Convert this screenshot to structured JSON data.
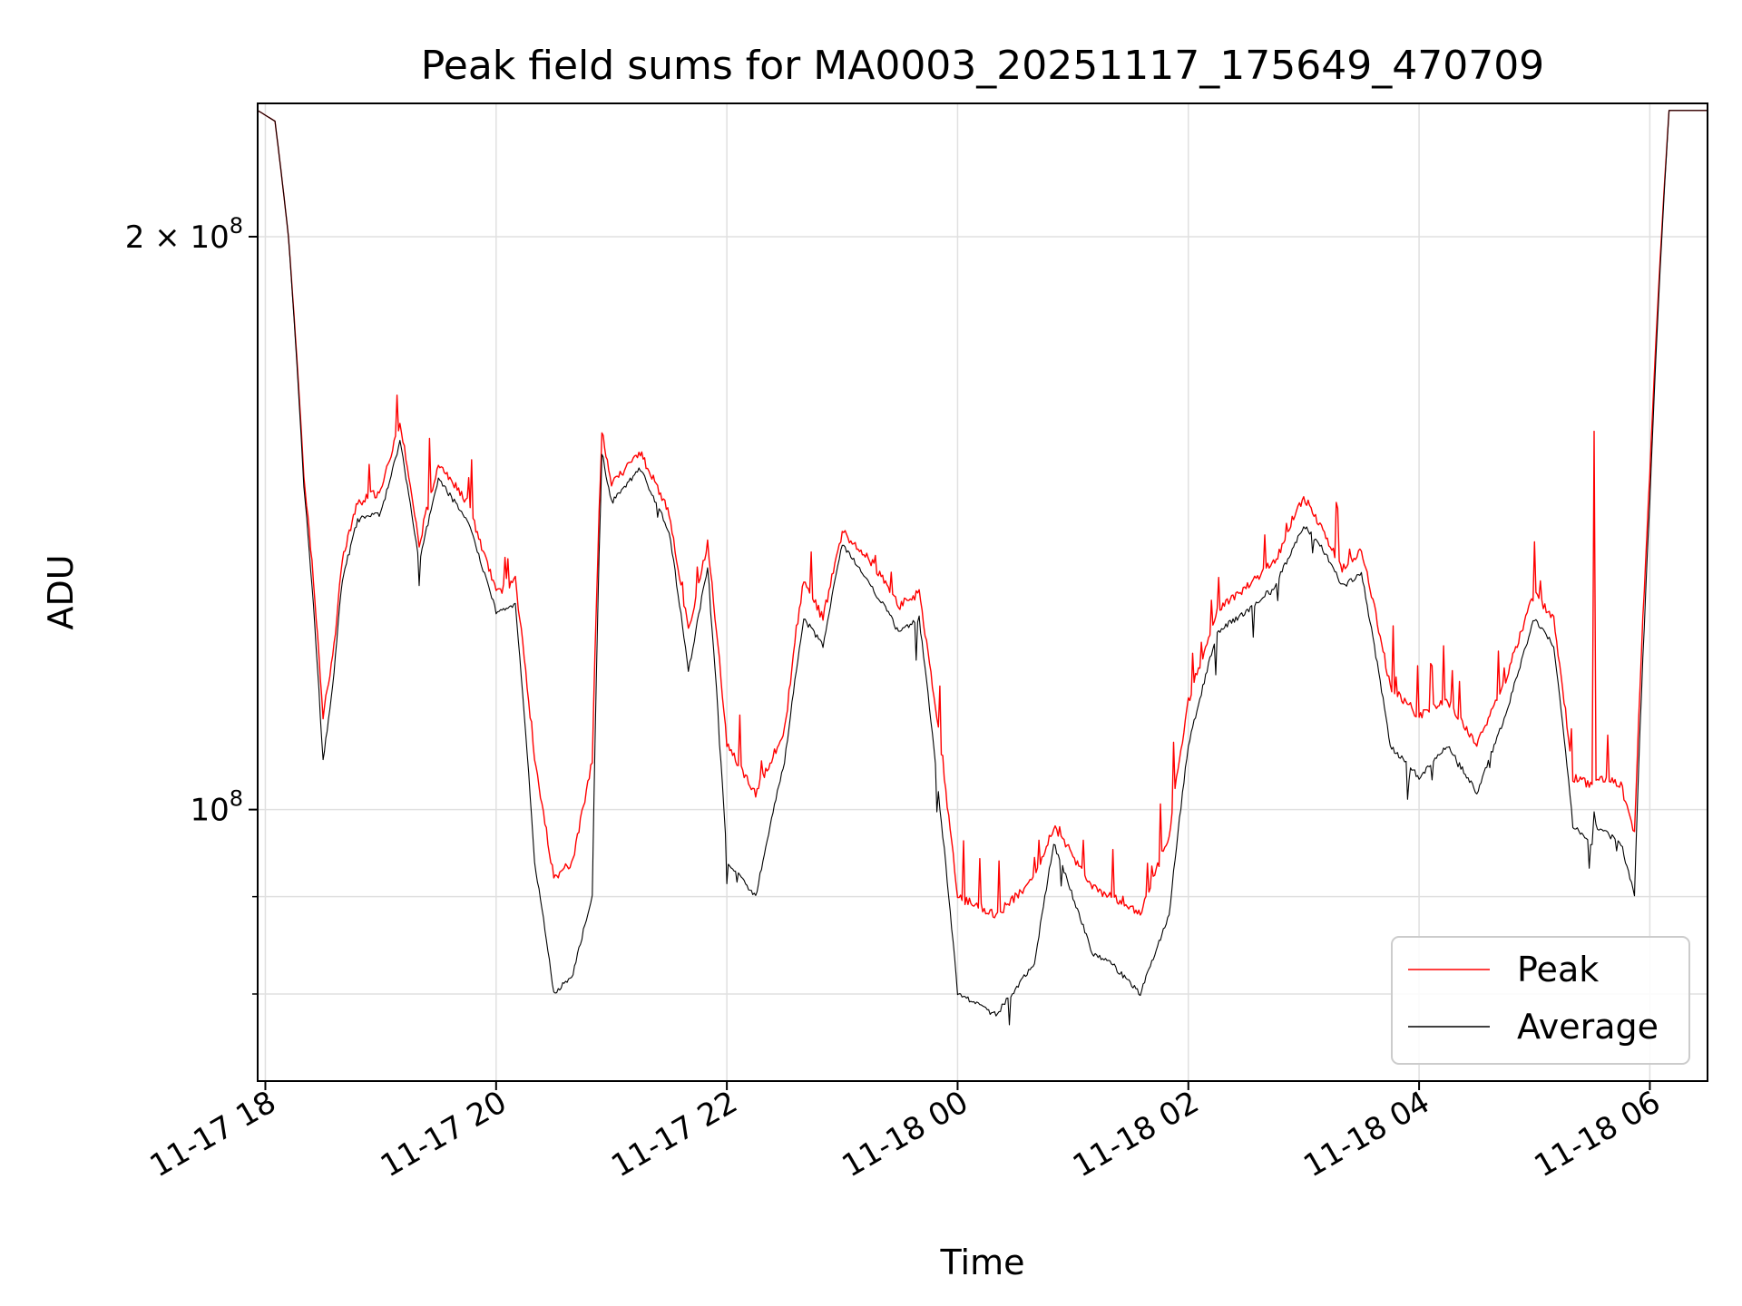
{
  "chart_data": {
    "type": "line",
    "title": "Peak field sums for MA0003_20251117_175649_470709",
    "xlabel": "Time",
    "ylabel": "ADU",
    "yscale": "log",
    "xlim": [
      "2025-11-17 17:56",
      "2025-11-18 06:30"
    ],
    "ylim": [
      72000000,
      235000000
    ],
    "x_ticks": [
      "11-17 18",
      "11-17 20",
      "11-17 22",
      "11-18 00",
      "11-18 02",
      "11-18 04",
      "11-18 06"
    ],
    "y_major_ticks": [
      {
        "value": 100000000,
        "mantissa": "",
        "base": "10",
        "exponent": "8"
      },
      {
        "value": 200000000,
        "mantissa": "2 × ",
        "base": "10",
        "exponent": "8"
      }
    ],
    "y_minor_ticks": [
      80000000,
      90000000
    ],
    "grid": true,
    "legend": {
      "position": "lower-right",
      "entries": [
        "Peak",
        "Average"
      ]
    },
    "series": [
      {
        "name": "Peak",
        "color": "#ff0000",
        "x": [
          "2025-11-17 17:56",
          "2025-11-17 18:05",
          "2025-11-17 18:12",
          "2025-11-17 18:20",
          "2025-11-17 18:25",
          "2025-11-17 18:30",
          "2025-11-17 18:35",
          "2025-11-17 18:40",
          "2025-11-17 18:48",
          "2025-11-17 19:00",
          "2025-11-17 19:10",
          "2025-11-17 19:20",
          "2025-11-17 19:30",
          "2025-11-17 19:45",
          "2025-11-17 20:00",
          "2025-11-17 20:10",
          "2025-11-17 20:20",
          "2025-11-17 20:30",
          "2025-11-17 20:40",
          "2025-11-17 20:50",
          "2025-11-17 20:55",
          "2025-11-17 21:00",
          "2025-11-17 21:15",
          "2025-11-17 21:30",
          "2025-11-17 21:40",
          "2025-11-17 21:50",
          "2025-11-17 22:00",
          "2025-11-17 22:15",
          "2025-11-17 22:30",
          "2025-11-17 22:40",
          "2025-11-17 22:50",
          "2025-11-17 23:00",
          "2025-11-17 23:15",
          "2025-11-17 23:30",
          "2025-11-17 23:40",
          "2025-11-17 23:50",
          "2025-11-18 00:00",
          "2025-11-18 00:20",
          "2025-11-18 00:40",
          "2025-11-18 00:50",
          "2025-11-18 01:10",
          "2025-11-18 01:20",
          "2025-11-18 01:35",
          "2025-11-18 01:50",
          "2025-11-18 02:00",
          "2025-11-18 02:15",
          "2025-11-18 02:30",
          "2025-11-18 02:45",
          "2025-11-18 03:00",
          "2025-11-18 03:10",
          "2025-11-18 03:20",
          "2025-11-18 03:30",
          "2025-11-18 03:45",
          "2025-11-18 04:00",
          "2025-11-18 04:15",
          "2025-11-18 04:30",
          "2025-11-18 04:45",
          "2025-11-18 05:00",
          "2025-11-18 05:10",
          "2025-11-18 05:20",
          "2025-11-18 05:30",
          "2025-11-18 05:31",
          "2025-11-18 05:32",
          "2025-11-18 05:45",
          "2025-11-18 05:52",
          "2025-11-18 06:00",
          "2025-11-18 06:10",
          "2025-11-18 06:30"
        ],
        "y": [
          233000000,
          230000000,
          200000000,
          150000000,
          132000000,
          112000000,
          120000000,
          135000000,
          145000000,
          147000000,
          160000000,
          138000000,
          152000000,
          145000000,
          130000000,
          132000000,
          106000000,
          92000000,
          94000000,
          106000000,
          158000000,
          148000000,
          154000000,
          143000000,
          124000000,
          138000000,
          108000000,
          102000000,
          110000000,
          132000000,
          126000000,
          140000000,
          135000000,
          128000000,
          130000000,
          110000000,
          90000000,
          88000000,
          92000000,
          98000000,
          91000000,
          90000000,
          88000000,
          97000000,
          114000000,
          127000000,
          131000000,
          135000000,
          146000000,
          140000000,
          134000000,
          137000000,
          116000000,
          112000000,
          114000000,
          108000000,
          117000000,
          130000000,
          126000000,
          104000000,
          103000000,
          158000000,
          104000000,
          103000000,
          97000000,
          150000000,
          233000000,
          233000000
        ]
      },
      {
        "name": "Average",
        "color": "#000000",
        "x": [
          "2025-11-17 17:56",
          "2025-11-17 18:05",
          "2025-11-17 18:12",
          "2025-11-17 18:20",
          "2025-11-17 18:25",
          "2025-11-17 18:30",
          "2025-11-17 18:35",
          "2025-11-17 18:40",
          "2025-11-17 18:48",
          "2025-11-17 19:00",
          "2025-11-17 19:10",
          "2025-11-17 19:20",
          "2025-11-17 19:30",
          "2025-11-17 19:45",
          "2025-11-17 20:00",
          "2025-11-17 20:10",
          "2025-11-17 20:20",
          "2025-11-17 20:30",
          "2025-11-17 20:40",
          "2025-11-17 20:50",
          "2025-11-17 20:55",
          "2025-11-17 21:00",
          "2025-11-17 21:15",
          "2025-11-17 21:30",
          "2025-11-17 21:40",
          "2025-11-17 21:50",
          "2025-11-17 22:00",
          "2025-11-17 22:15",
          "2025-11-17 22:30",
          "2025-11-17 22:40",
          "2025-11-17 22:50",
          "2025-11-17 23:00",
          "2025-11-17 23:15",
          "2025-11-17 23:30",
          "2025-11-17 23:40",
          "2025-11-17 23:50",
          "2025-11-18 00:00",
          "2025-11-18 00:20",
          "2025-11-18 00:40",
          "2025-11-18 00:50",
          "2025-11-18 01:10",
          "2025-11-18 01:20",
          "2025-11-18 01:35",
          "2025-11-18 01:50",
          "2025-11-18 02:00",
          "2025-11-18 02:15",
          "2025-11-18 02:30",
          "2025-11-18 02:45",
          "2025-11-18 03:00",
          "2025-11-18 03:10",
          "2025-11-18 03:20",
          "2025-11-18 03:30",
          "2025-11-18 03:45",
          "2025-11-18 04:00",
          "2025-11-18 04:15",
          "2025-11-18 04:30",
          "2025-11-18 04:45",
          "2025-11-18 05:00",
          "2025-11-18 05:10",
          "2025-11-18 05:20",
          "2025-11-18 05:30",
          "2025-11-18 05:31",
          "2025-11-18 05:32",
          "2025-11-18 05:45",
          "2025-11-18 05:52",
          "2025-11-18 06:00",
          "2025-11-18 06:10",
          "2025-11-18 06:30"
        ],
        "y": [
          233000000,
          230000000,
          200000000,
          148000000,
          128000000,
          106000000,
          116000000,
          132000000,
          142000000,
          143000000,
          156000000,
          135000000,
          149000000,
          142000000,
          127000000,
          128000000,
          94000000,
          80000000,
          82000000,
          90000000,
          154000000,
          145000000,
          151000000,
          140000000,
          118000000,
          134000000,
          94000000,
          90000000,
          106000000,
          126000000,
          122000000,
          138000000,
          131000000,
          124000000,
          126000000,
          102000000,
          80000000,
          78000000,
          83000000,
          96000000,
          84000000,
          83000000,
          80000000,
          88000000,
          108000000,
          124000000,
          127000000,
          131000000,
          141000000,
          137000000,
          131000000,
          133000000,
          108000000,
          104000000,
          108000000,
          102000000,
          112000000,
          126000000,
          122000000,
          98000000,
          96000000,
          100000000,
          98000000,
          96000000,
          90000000,
          145000000,
          233000000,
          233000000
        ]
      }
    ]
  }
}
